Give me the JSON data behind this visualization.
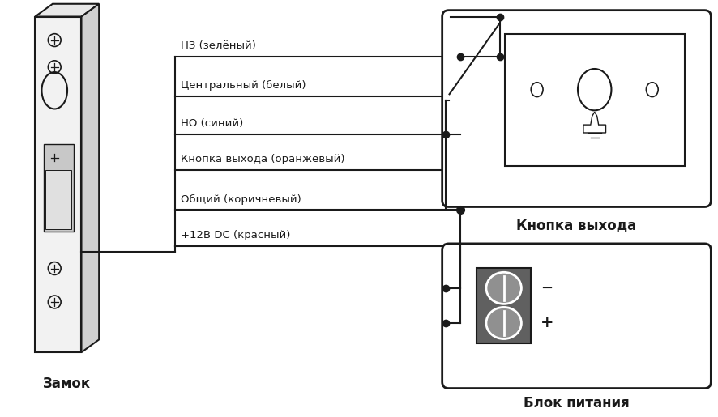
{
  "bg_color": "#ffffff",
  "line_color": "#1a1a1a",
  "wire_labels": [
    "НЗ (зелёный)",
    "Центральный (белый)",
    "НО (синий)",
    "Кнопка выхода (оранжевый)",
    "Общий (коричневый)",
    "+12В DC (красный)"
  ],
  "lock_label": "Замок",
  "button_label": "Кнопка выхода",
  "psu_label": "Блок питания"
}
